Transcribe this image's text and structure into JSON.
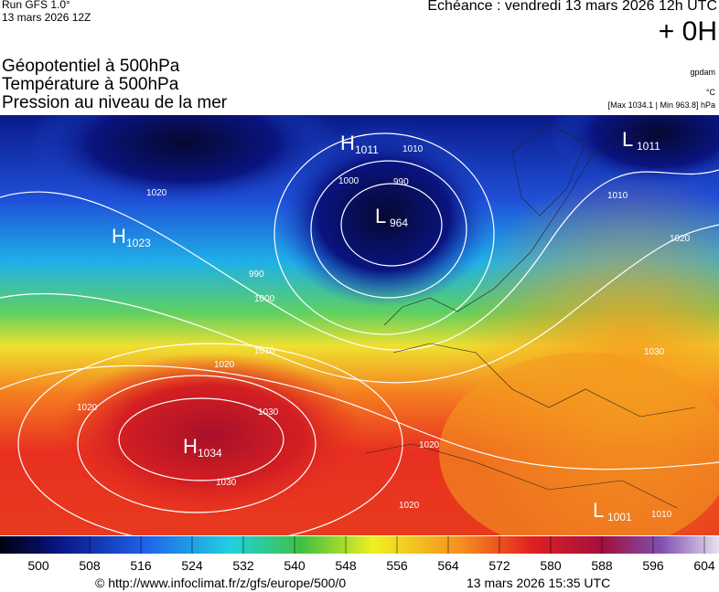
{
  "header": {
    "run": "Run GFS 1.0°",
    "run_date": "13 mars 2026 12Z",
    "forecast": "Echéance : vendredi 13 mars 2026 12h UTC",
    "lead": "+ 0H",
    "fields": [
      "Géopotentiel à 500hPa",
      "Température à 500hPa",
      "Pression au niveau de la mer"
    ],
    "units": [
      "gpdam",
      "°C",
      "[Max 1034.1 | Min 963.8] hPa"
    ]
  },
  "map": {
    "centers": [
      {
        "letter": "H",
        "value": "1011"
      },
      {
        "letter": "L",
        "value": "1011"
      },
      {
        "letter": "L",
        "value": "964"
      },
      {
        "letter": "H",
        "value": "1023"
      },
      {
        "letter": "H",
        "value": "1034"
      },
      {
        "letter": "L",
        "value": "1001"
      }
    ],
    "isobar_labels": [
      "1020",
      "1010",
      "1000",
      "990",
      "1010",
      "1020",
      "990",
      "1000",
      "1010",
      "1020",
      "1020",
      "1030",
      "1030",
      "1020",
      "1020",
      "1030",
      "1010"
    ]
  },
  "colorbar": {
    "labels": [
      500,
      508,
      516,
      524,
      532,
      540,
      548,
      556,
      564,
      572,
      580,
      588,
      596,
      604
    ]
  },
  "footer": {
    "source": "© http://www.infoclimat.fr/z/gfs/europe/500/0",
    "created": "13 mars 2026 15:35 UTC"
  }
}
